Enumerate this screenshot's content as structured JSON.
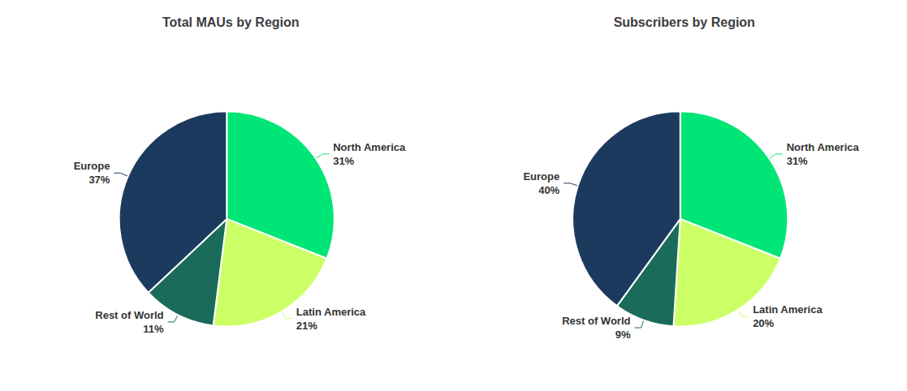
{
  "chart_data": [
    {
      "type": "pie",
      "title": "Total MAUs by Region",
      "categories": [
        "North America",
        "Latin America",
        "Rest of World",
        "Europe"
      ],
      "values": [
        31,
        21,
        11,
        37
      ],
      "value_labels": [
        "31%",
        "21%",
        "11%",
        "37%"
      ],
      "colors": [
        "#00E676",
        "#CCFF66",
        "#1A6B5A",
        "#1C3A5E"
      ],
      "data_labels": true
    },
    {
      "type": "pie",
      "title": "Subscribers by Region",
      "categories": [
        "North America",
        "Latin America",
        "Rest of World",
        "Europe"
      ],
      "values": [
        31,
        20,
        9,
        40
      ],
      "value_labels": [
        "31%",
        "20%",
        "9%",
        "40%"
      ],
      "colors": [
        "#00E676",
        "#CCFF66",
        "#1A6B5A",
        "#1C3A5E"
      ],
      "data_labels": true
    }
  ]
}
